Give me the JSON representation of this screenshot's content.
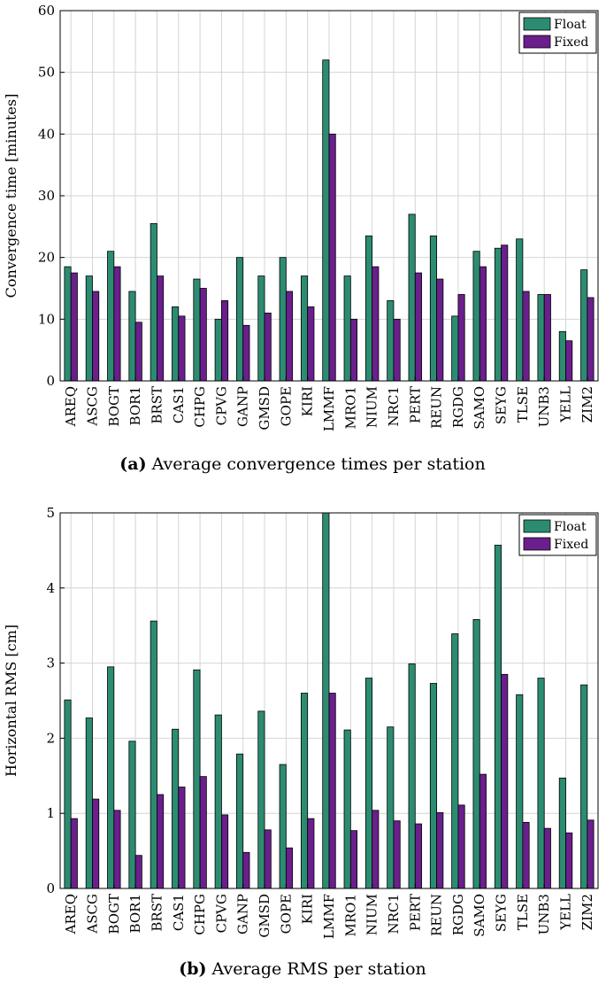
{
  "colors": {
    "float": "#2c8c71",
    "fixed": "#6a1f8c",
    "grid": "#d4d4d4",
    "axis": "#000000"
  },
  "chart_data": [
    {
      "type": "bar",
      "title": "",
      "caption_label": "(a)",
      "caption_text": "Average convergence times per station",
      "xlabel": "",
      "ylabel": "Convergence time [minutes]",
      "ylim": [
        0,
        60
      ],
      "yticks": [
        "0",
        "10",
        "20",
        "30",
        "40",
        "50",
        "60"
      ],
      "grid": true,
      "legend_position": "top-right",
      "categories": [
        "AREQ",
        "ASCG",
        "BOGT",
        "BOR1",
        "BRST",
        "CAS1",
        "CHPG",
        "CPVG",
        "GANP",
        "GMSD",
        "GOPE",
        "KIRI",
        "LMMF",
        "MRO1",
        "NIUM",
        "NRC1",
        "PERT",
        "REUN",
        "RGDG",
        "SAMO",
        "SEYG",
        "TLSE",
        "UNB3",
        "YELL",
        "ZIM2"
      ],
      "series": [
        {
          "name": "Float",
          "values": [
            18.5,
            17,
            21,
            14.5,
            25.5,
            12,
            16.5,
            10,
            20,
            17,
            20,
            17,
            52,
            17,
            23.5,
            13,
            27,
            23.5,
            10.5,
            21,
            21.5,
            23,
            14,
            8,
            18
          ]
        },
        {
          "name": "Fixed",
          "values": [
            17.5,
            14.5,
            18.5,
            9.5,
            17,
            10.5,
            15,
            13,
            9,
            11,
            14.5,
            12,
            40,
            10,
            18.5,
            10,
            17.5,
            16.5,
            14,
            18.5,
            22,
            14.5,
            14,
            6.5,
            13.5
          ]
        }
      ]
    },
    {
      "type": "bar",
      "title": "",
      "caption_label": "(b)",
      "caption_text": "Average RMS per station",
      "xlabel": "",
      "ylabel": "Horizontal RMS [cm]",
      "ylim": [
        0,
        5
      ],
      "yticks": [
        "0",
        "1",
        "2",
        "3",
        "4",
        "5"
      ],
      "grid": true,
      "legend_position": "top-right",
      "categories": [
        "AREQ",
        "ASCG",
        "BOGT",
        "BOR1",
        "BRST",
        "CAS1",
        "CHPG",
        "CPVG",
        "GANP",
        "GMSD",
        "GOPE",
        "KIRI",
        "LMMF",
        "MRO1",
        "NIUM",
        "NRC1",
        "PERT",
        "REUN",
        "RGDG",
        "SAMO",
        "SEYG",
        "TLSE",
        "UNB3",
        "YELL",
        "ZIM2"
      ],
      "series": [
        {
          "name": "Float",
          "values": [
            2.51,
            2.27,
            2.95,
            1.96,
            3.56,
            2.12,
            2.91,
            2.31,
            1.79,
            2.36,
            1.65,
            2.6,
            5.0,
            2.11,
            2.8,
            2.15,
            2.99,
            2.73,
            3.39,
            3.58,
            4.57,
            2.58,
            2.8,
            1.47,
            2.71
          ]
        },
        {
          "name": "Fixed",
          "values": [
            0.93,
            1.19,
            1.04,
            0.44,
            1.25,
            1.35,
            1.49,
            0.98,
            0.48,
            0.78,
            0.54,
            0.93,
            2.6,
            0.77,
            1.04,
            0.9,
            0.86,
            1.01,
            1.11,
            1.52,
            2.85,
            0.88,
            0.8,
            0.74,
            0.91
          ]
        }
      ]
    }
  ]
}
